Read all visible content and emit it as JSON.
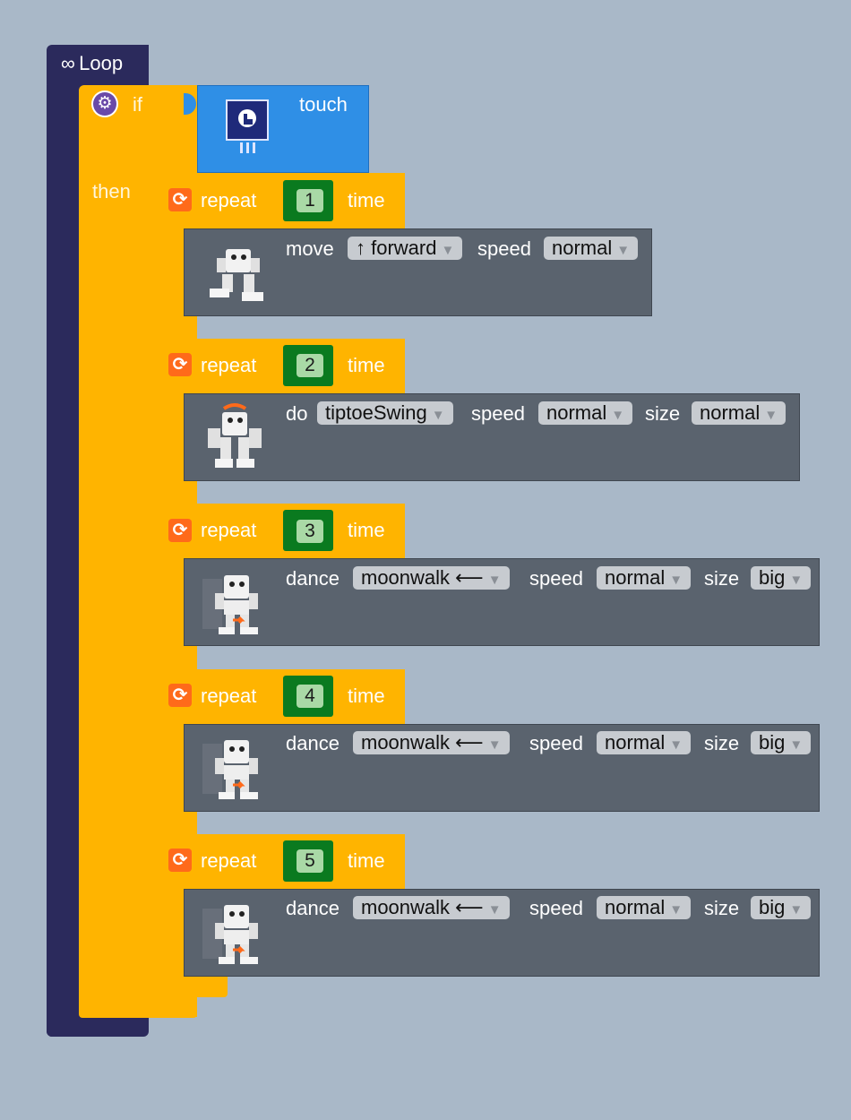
{
  "loop": {
    "icon": "∞",
    "label": "Loop"
  },
  "if_block": {
    "label": "if",
    "then_label": "then",
    "condition": "touch"
  },
  "repeat_label": "repeat",
  "time_label": "time",
  "speed_label": "speed",
  "size_label": "size",
  "repeats": [
    {
      "count": "1",
      "verb": "move",
      "action": "↑ forward",
      "speed": "normal"
    },
    {
      "count": "2",
      "verb": "do",
      "action": "tiptoeSwing",
      "speed": "normal",
      "size": "normal"
    },
    {
      "count": "3",
      "verb": "dance",
      "action": "moonwalk ⟵",
      "speed": "normal",
      "size": "big"
    },
    {
      "count": "4",
      "verb": "dance",
      "action": "moonwalk ⟵",
      "speed": "normal",
      "size": "big"
    },
    {
      "count": "5",
      "verb": "dance",
      "action": "moonwalk ⟵",
      "speed": "normal",
      "size": "big"
    }
  ],
  "dropdown_arrow": "▼",
  "colors": {
    "loop": "#2b2a5c",
    "control": "#ffb400",
    "sensor": "#2f8fe6",
    "action": "#5a636e",
    "number": "#0a7a1f"
  }
}
